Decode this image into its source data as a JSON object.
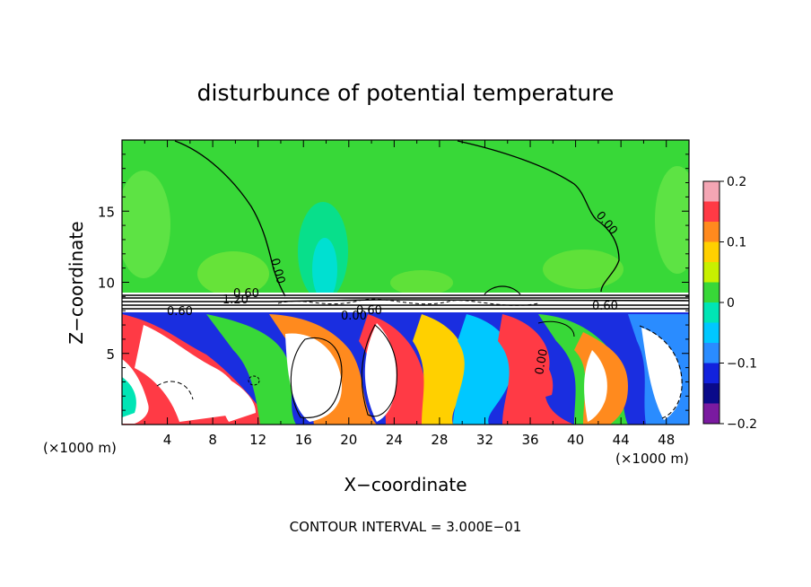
{
  "chart_data": {
    "type": "heatmap",
    "title": "disturbunce of potential temperature",
    "xlabel": "X−coordinate",
    "ylabel": "Z−coordinate",
    "x_unit_left": "(×1000 m)",
    "x_unit_right": "(×1000 m)",
    "x_ticks": [
      "4",
      "8",
      "12",
      "16",
      "20",
      "24",
      "28",
      "32",
      "36",
      "40",
      "44",
      "48"
    ],
    "y_ticks": [
      "5",
      "10",
      "15"
    ],
    "xlim": [
      0,
      50
    ],
    "ylim": [
      0,
      20
    ],
    "colorbar": {
      "range": [
        -0.2,
        0.2
      ],
      "tick_labels": [
        "0.2",
        "0.1",
        "0",
        "−0.1",
        "−0.2"
      ],
      "colors": [
        "#f4a6b4",
        "#ff3a45",
        "#ff8a1e",
        "#ffd000",
        "#c8f000",
        "#38d838",
        "#00e5b5",
        "#00c8ff",
        "#2a8cff",
        "#1222dd",
        "#0a0a8a",
        "#7a1aa0"
      ]
    },
    "contour_labels": [
      "0.00",
      "0.00",
      "0.00",
      "1.20",
      "0.60",
      "0.60",
      "0.60",
      "0.00",
      "0.60"
    ],
    "footer": "CONTOUR INTERVAL = 3.000E−01"
  }
}
